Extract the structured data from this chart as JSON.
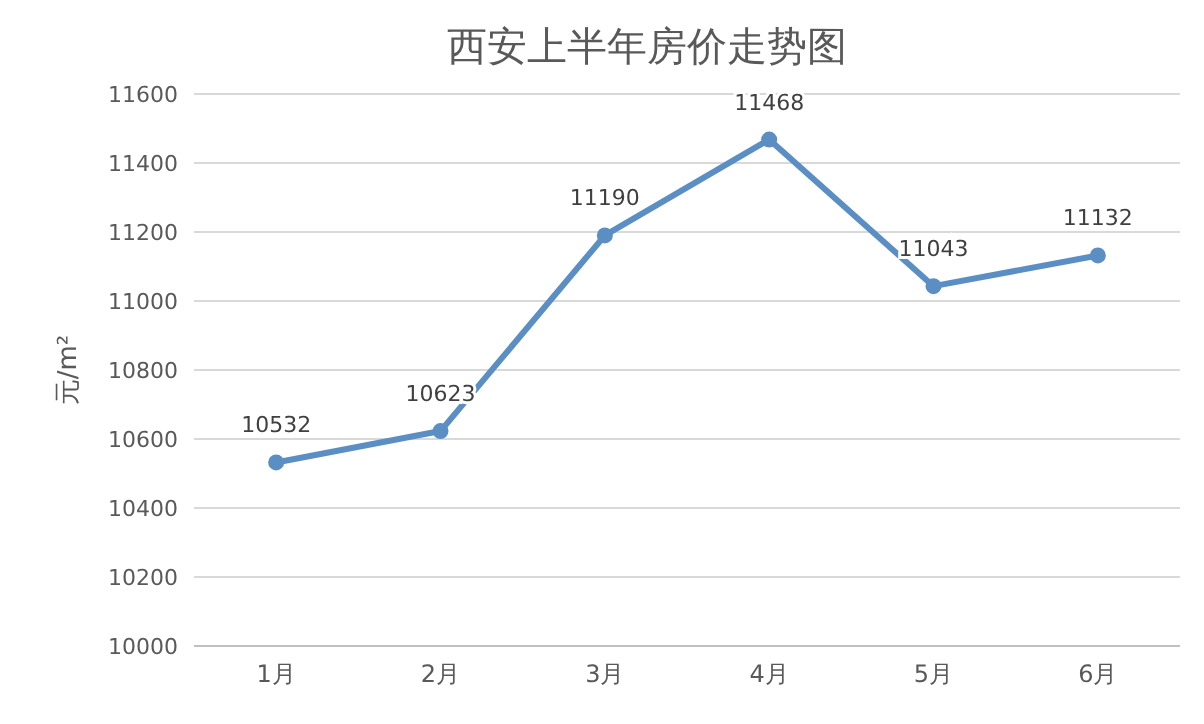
{
  "chart_data": {
    "type": "line",
    "title": "西安上半年房价走势图",
    "ylabel": "元/m²",
    "categories": [
      "1月",
      "2月",
      "3月",
      "4月",
      "5月",
      "6月"
    ],
    "series": [
      {
        "color": "#5b8fc4",
        "values": [
          10532,
          10623,
          11190,
          11468,
          11043,
          11132
        ]
      }
    ],
    "ylim": [
      10000,
      11600
    ],
    "yticks": [
      10000,
      10200,
      10400,
      10600,
      10800,
      11000,
      11200,
      11400,
      11600
    ],
    "grid": "y",
    "marker": "circle",
    "line_style": "solid",
    "data_labels": true
  }
}
